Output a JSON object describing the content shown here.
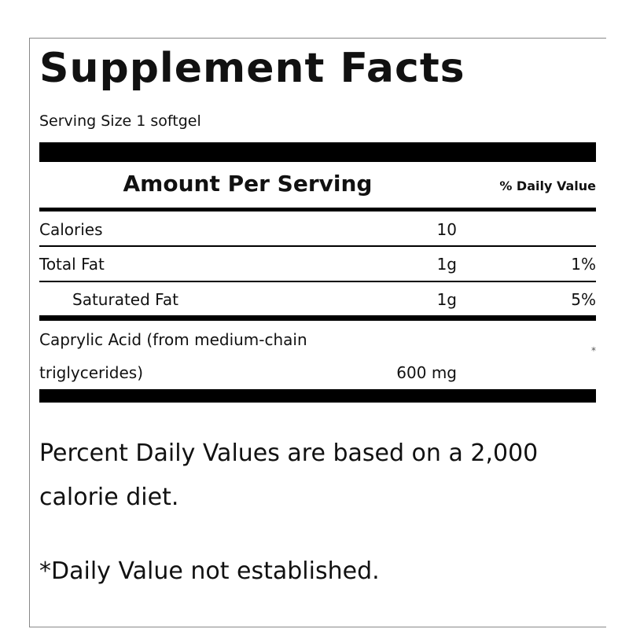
{
  "title": "Supplement Facts",
  "serving_size": "Serving Size 1 softgel",
  "header": {
    "amount": "Amount Per Serving",
    "daily_value": "% Daily Value"
  },
  "rows": [
    {
      "name": "Calories",
      "amount": "10"
    },
    {
      "name": "Total Fat",
      "amount": "1g",
      "daily_value": "1%"
    },
    {
      "name": "Saturated Fat",
      "amount": "1g",
      "daily_value": "5%"
    },
    {
      "name": "Caprylic Acid (from medium-chain triglycerides)",
      "amount": "600 mg",
      "daily_value": "*"
    }
  ],
  "footnotes": [
    "Percent Daily Values are based on a 2,000 calorie diet.",
    "*Daily Value not established."
  ]
}
